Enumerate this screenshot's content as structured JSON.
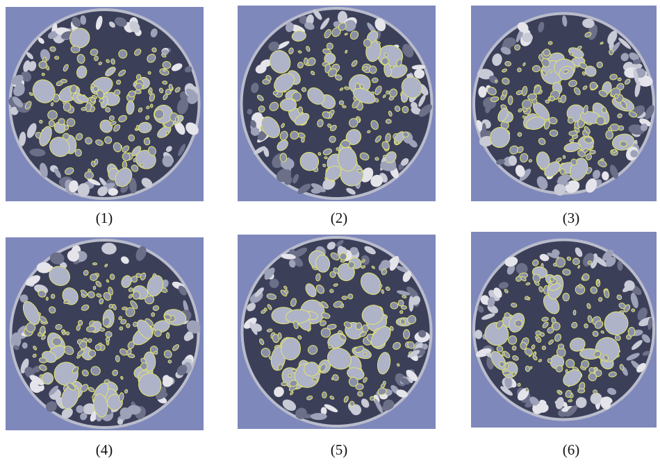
{
  "panels": [
    {
      "label": "(1)"
    },
    {
      "label": "(2)"
    },
    {
      "label": "(3)"
    },
    {
      "label": "(4)"
    },
    {
      "label": "(5)"
    },
    {
      "label": "(6)"
    }
  ]
}
